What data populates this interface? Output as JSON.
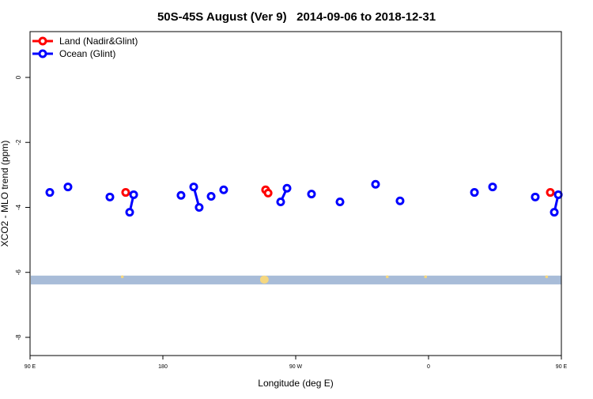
{
  "chart_data": {
    "type": "scatter",
    "title": "50S-45S August (Ver 9)   2014-09-06 to 2018-12-31",
    "xlabel": "Longitude (deg E)",
    "ylabel": "XCO2 - MLO trend (ppm)",
    "xlim_east_continuous": [
      90,
      450
    ],
    "ylim": [
      -8.56,
      1.41
    ],
    "xticks": [
      {
        "value": 90,
        "label": "90 E"
      },
      {
        "value": 180,
        "label": "180"
      },
      {
        "value": 270,
        "label": "90 W"
      },
      {
        "value": 360,
        "label": "0"
      },
      {
        "value": 450,
        "label": "90 E"
      },
      {
        "value": 540,
        "label": "180"
      }
    ],
    "yticks": [
      0,
      -2,
      -4,
      -6,
      -8
    ],
    "grid": false,
    "legend_position": "top-left",
    "series": [
      {
        "name": "Land (Nadir&Glint)",
        "color": "#ff0000",
        "groups": [
          [
            [
              154.8,
              -3.54
            ]
          ],
          [
            [
              -110.4,
              -3.46
            ]
          ],
          [
            [
              -108.7,
              -3.56
            ]
          ],
          [
            [
              82.5,
              -3.54
            ]
          ]
        ]
      },
      {
        "name": "Ocean (Glint)",
        "color": "#0000ff",
        "groups": [
          [
            [
              103.4,
              -3.54
            ]
          ],
          [
            [
              115.7,
              -3.37
            ]
          ],
          [
            [
              144.1,
              -3.68
            ]
          ],
          [
            [
              157.5,
              -4.15
            ],
            [
              160.2,
              -3.61
            ]
          ],
          [
            [
              -167.7,
              -3.63
            ]
          ],
          [
            [
              -159.1,
              -3.37
            ],
            [
              -155.4,
              -4.0
            ]
          ],
          [
            [
              -147.3,
              -3.66
            ]
          ],
          [
            [
              -138.8,
              -3.46
            ]
          ],
          [
            [
              -100.2,
              -3.83
            ],
            [
              -95.9,
              -3.41
            ]
          ],
          [
            [
              -79.3,
              -3.59
            ]
          ],
          [
            [
              -60.0,
              -3.83
            ]
          ],
          [
            [
              -35.9,
              -3.29
            ]
          ],
          [
            [
              -19.3,
              -3.8
            ]
          ],
          [
            [
              31.1,
              -3.54
            ]
          ],
          [
            [
              43.4,
              -3.37
            ]
          ],
          [
            [
              72.3,
              -3.68
            ]
          ],
          [
            [
              85.2,
              -4.15
            ],
            [
              87.9,
              -3.61
            ]
          ]
        ]
      }
    ],
    "map_strip": {
      "y_range": [
        -6.1,
        -6.37
      ],
      "ocean_color": "#a8bcd8",
      "land_color": "#f5d77f",
      "land_longitudes": [
        152.5,
        -111,
        -111.5,
        -28,
        -2,
        80
      ]
    }
  }
}
